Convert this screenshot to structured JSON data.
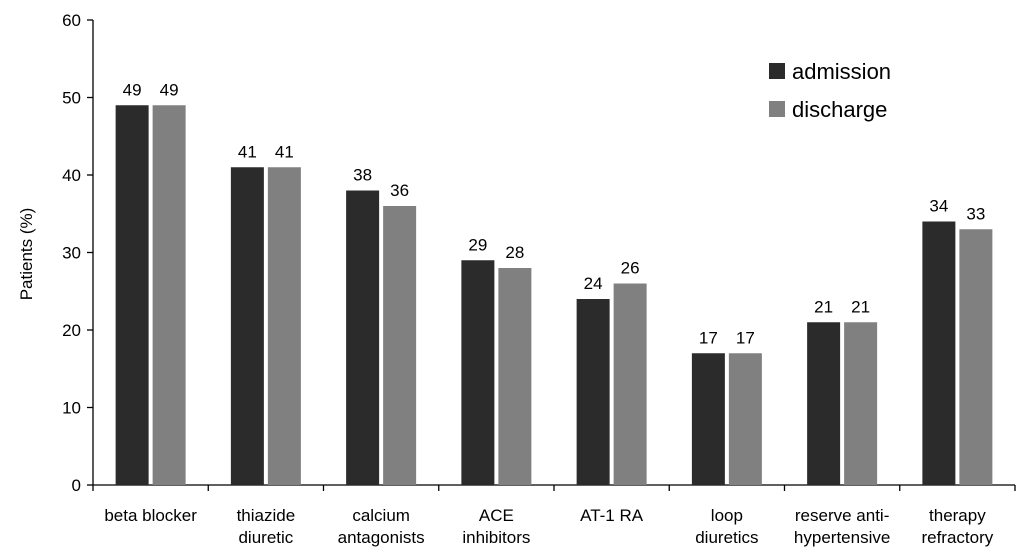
{
  "chart_data": {
    "type": "bar",
    "ylabel": "Patients (%)",
    "ylim": [
      0,
      60
    ],
    "yticks": [
      0,
      10,
      20,
      30,
      40,
      50,
      60
    ],
    "categories": [
      [
        "beta blocker"
      ],
      [
        "thiazide",
        "diuretic"
      ],
      [
        "calcium",
        "antagonists"
      ],
      [
        "ACE",
        "inhibitors"
      ],
      [
        "AT-1 RA"
      ],
      [
        "loop",
        "diuretics"
      ],
      [
        "reserve anti-",
        "hypertensive"
      ],
      [
        "therapy",
        "refractory"
      ]
    ],
    "series": [
      {
        "name": "admission",
        "color": "#2b2b2b",
        "values": [
          49,
          41,
          38,
          29,
          24,
          17,
          21,
          34
        ]
      },
      {
        "name": "discharge",
        "color": "#808080",
        "values": [
          49,
          41,
          36,
          28,
          26,
          17,
          21,
          33
        ]
      }
    ],
    "legend_position": "top-right",
    "grid": false
  }
}
